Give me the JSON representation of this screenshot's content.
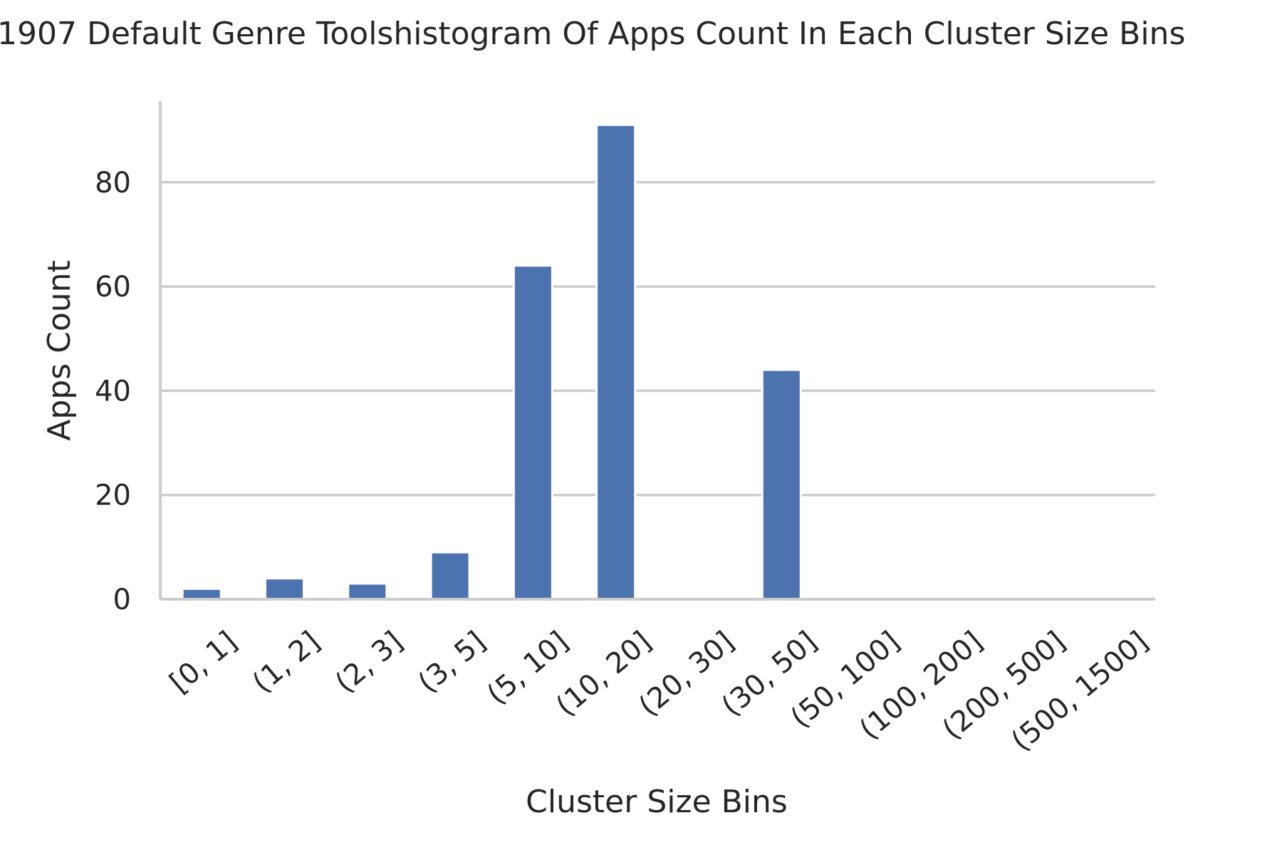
{
  "chart_data": {
    "type": "bar",
    "title": "1907 Default Genre Toolshistogram Of Apps Count In Each Cluster Size Bins",
    "xlabel": "Cluster Size Bins",
    "ylabel": "Apps Count",
    "categories": [
      "[0, 1]",
      "(1, 2]",
      "(2, 3]",
      "(3, 5]",
      "(5, 10]",
      "(10, 20]",
      "(20, 30]",
      "(30, 50]",
      "(50, 100]",
      "(100, 200]",
      "(200, 500]",
      "(500, 1500]"
    ],
    "values": [
      2,
      4,
      3,
      9,
      64,
      91,
      0,
      44,
      0,
      0,
      0,
      0
    ],
    "ylim": [
      0,
      95.55
    ],
    "yticks": [
      0,
      20,
      40,
      60,
      80
    ],
    "grid": "y",
    "bar_color": "#4c72b0",
    "grid_color": "#cccccc"
  }
}
